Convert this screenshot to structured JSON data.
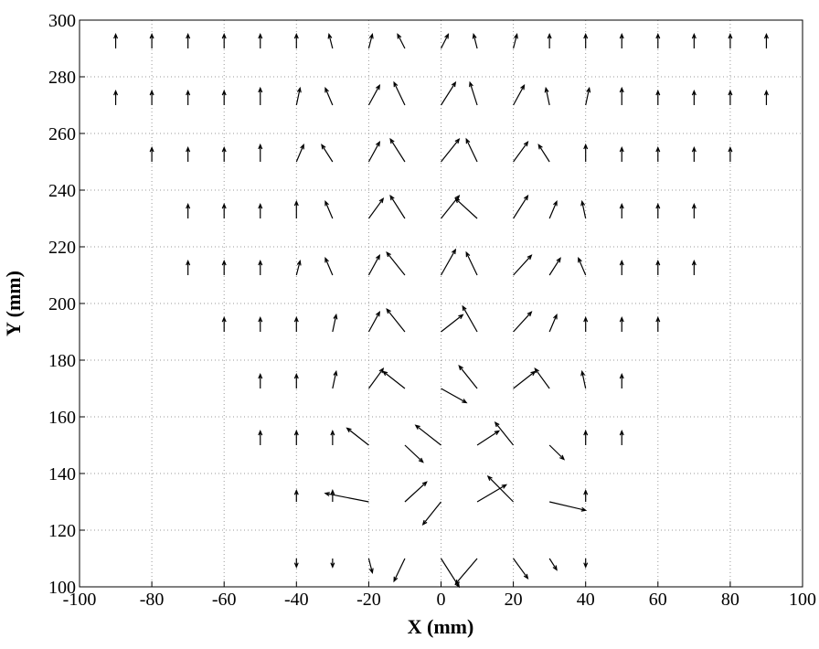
{
  "chart_data": {
    "type": "quiver",
    "xlabel": "X (mm)",
    "ylabel": "Y (mm)",
    "xlim": [
      -100,
      100
    ],
    "ylim": [
      100,
      300
    ],
    "xticks": [
      -100,
      -80,
      -60,
      -40,
      -20,
      0,
      20,
      40,
      60,
      80,
      100
    ],
    "yticks": [
      100,
      120,
      140,
      160,
      180,
      200,
      220,
      240,
      260,
      280,
      300
    ],
    "grid": true,
    "color": "#000000",
    "rows": [
      {
        "y": 110,
        "x": [
          -40,
          -30,
          -20,
          -10,
          0,
          10,
          20,
          30,
          40
        ],
        "u": [
          0,
          0,
          1,
          -3,
          5,
          -6,
          4,
          2,
          0
        ],
        "v": [
          -3,
          -3,
          -5,
          -8,
          -10,
          -9,
          -7,
          -4,
          -3
        ]
      },
      {
        "y": 130,
        "x": [
          -40,
          -30,
          -20,
          -10,
          0,
          10,
          20,
          30,
          40
        ],
        "u": [
          0,
          0,
          -12,
          6,
          -5,
          8,
          -7,
          10,
          0
        ],
        "v": [
          4,
          4,
          3,
          7,
          -8,
          6,
          9,
          -3,
          4
        ]
      },
      {
        "y": 150,
        "x": [
          -50,
          -40,
          -30,
          -20,
          -10,
          0,
          10,
          20,
          30,
          40,
          50
        ],
        "u": [
          0,
          0,
          0,
          -6,
          5,
          -7,
          6,
          -5,
          4,
          0,
          0
        ],
        "v": [
          5,
          5,
          5,
          6,
          -6,
          7,
          5,
          8,
          -5,
          5,
          5
        ]
      },
      {
        "y": 170,
        "x": [
          -50,
          -40,
          -30,
          -20,
          -10,
          0,
          10,
          20,
          30,
          40,
          50
        ],
        "u": [
          0,
          0,
          1,
          4,
          -6,
          7,
          -5,
          6,
          -4,
          -1,
          0
        ],
        "v": [
          5,
          5,
          6,
          7,
          6,
          -5,
          8,
          6,
          7,
          6,
          5
        ]
      },
      {
        "y": 190,
        "x": [
          -60,
          -50,
          -40,
          -30,
          -20,
          -10,
          0,
          10,
          20,
          30,
          40,
          50,
          60
        ],
        "u": [
          0,
          0,
          0,
          1,
          3,
          -5,
          6,
          -4,
          5,
          2,
          0,
          0,
          0
        ],
        "v": [
          5,
          5,
          5,
          6,
          7,
          8,
          6,
          9,
          7,
          6,
          5,
          5,
          5
        ]
      },
      {
        "y": 210,
        "x": [
          -70,
          -60,
          -50,
          -40,
          -30,
          -20,
          -10,
          0,
          10,
          20,
          30,
          40,
          50,
          60,
          70
        ],
        "u": [
          0,
          0,
          0,
          1,
          -2,
          3,
          -5,
          4,
          -3,
          5,
          3,
          -2,
          0,
          0,
          0
        ],
        "v": [
          5,
          5,
          5,
          5,
          6,
          7,
          8,
          9,
          8,
          7,
          6,
          6,
          5,
          5,
          5
        ]
      },
      {
        "y": 230,
        "x": [
          -70,
          -60,
          -50,
          -40,
          -30,
          -20,
          -10,
          0,
          10,
          20,
          30,
          40,
          50,
          60,
          70
        ],
        "u": [
          0,
          0,
          0,
          0,
          -2,
          4,
          -4,
          5,
          -6,
          4,
          2,
          -1,
          0,
          0,
          0
        ],
        "v": [
          5,
          5,
          5,
          6,
          6,
          7,
          8,
          8,
          7,
          8,
          6,
          6,
          5,
          5,
          5
        ]
      },
      {
        "y": 250,
        "x": [
          -80,
          -70,
          -60,
          -50,
          -40,
          -30,
          -20,
          -10,
          0,
          10,
          20,
          30,
          40,
          50,
          60,
          70,
          80
        ],
        "u": [
          0,
          0,
          0,
          0,
          2,
          -3,
          3,
          -4,
          5,
          -3,
          4,
          -3,
          0,
          0,
          0,
          0,
          0
        ],
        "v": [
          5,
          5,
          5,
          6,
          6,
          6,
          7,
          8,
          8,
          8,
          7,
          6,
          6,
          5,
          5,
          5,
          5
        ]
      },
      {
        "y": 270,
        "x": [
          -90,
          -80,
          -70,
          -60,
          -50,
          -40,
          -30,
          -20,
          -10,
          0,
          10,
          20,
          30,
          40,
          50,
          60,
          70,
          80,
          90
        ],
        "u": [
          0,
          0,
          0,
          0,
          0,
          1,
          -2,
          3,
          -3,
          4,
          -2,
          3,
          -1,
          1,
          0,
          0,
          0,
          0,
          0
        ],
        "v": [
          5,
          5,
          5,
          5,
          6,
          6,
          6,
          7,
          8,
          8,
          8,
          7,
          6,
          6,
          6,
          5,
          5,
          5,
          5
        ]
      },
      {
        "y": 290,
        "x": [
          -90,
          -80,
          -70,
          -60,
          -50,
          -40,
          -30,
          -20,
          -10,
          0,
          10,
          20,
          30,
          40,
          50,
          60,
          70,
          80,
          90
        ],
        "u": [
          0,
          0,
          0,
          0,
          0,
          0,
          -1,
          1,
          -2,
          2,
          -1,
          1,
          0,
          0,
          0,
          0,
          0,
          0,
          0
        ],
        "v": [
          5,
          5,
          5,
          5,
          5,
          5,
          5,
          5,
          5,
          5,
          5,
          5,
          5,
          5,
          5,
          5,
          5,
          5,
          5
        ]
      }
    ]
  }
}
